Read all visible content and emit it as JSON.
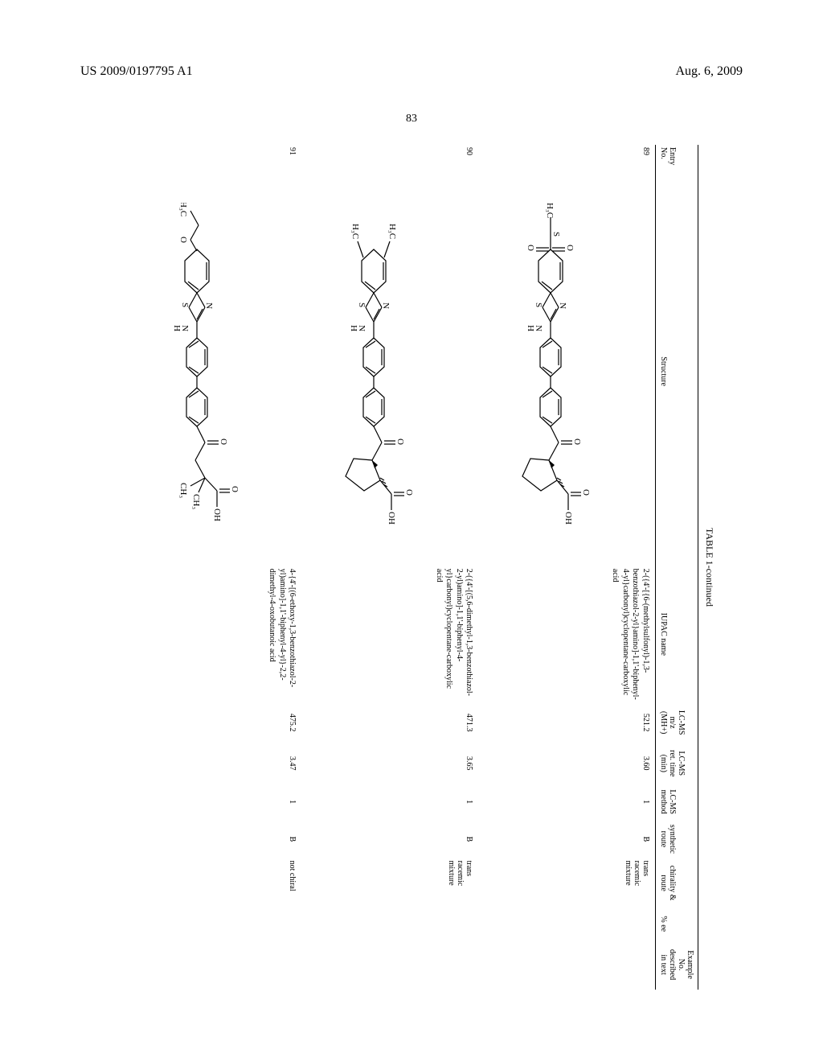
{
  "header": {
    "pub_number": "US 2009/0197795 A1",
    "pub_date": "Aug. 6, 2009"
  },
  "page_number_top": "83",
  "table": {
    "title": "TABLE 1-continued",
    "columns": {
      "entry": "Entry\nNo.",
      "structure": "Structure",
      "iupac": "IUPAC name",
      "mz": "LC-MS\nm/z\n(MH+)",
      "ret_time": "LC-MS\nret. time\n(min)",
      "method": "LC-MS\nmethod",
      "route": "synthetic\nroute",
      "chirality": "chirality &\nroute",
      "ee": "% ee",
      "example": "Example\nNo.\ndescribed\nin text"
    },
    "rows": [
      {
        "entry": "89",
        "iupac": "2-({4'-[{6-(methylsulfonyl)-1,3-benzothiazol-2-yl}amino]-1,1'-biphenyl-4-yl}carbonyl)cyclopentane-carboxylic acid",
        "mz": "521.2",
        "ret_time": "3.60",
        "method": "1",
        "route": "B",
        "chirality": "trans\nracemic\nmixture",
        "ee": "",
        "example": "",
        "structure_type": "methylsulfonyl-benzothiazole-biphenyl-cyclopentane"
      },
      {
        "entry": "90",
        "iupac": "2-({4'-[(5,6-dimethyl-1,3-benzothiazol-2-yl)amino]-1,1'-biphenyl-4-yl}carbonyl)cyclopentane-carboxylic acid",
        "mz": "471.3",
        "ret_time": "3.65",
        "method": "1",
        "route": "B",
        "chirality": "trans\nracemic\nmixture",
        "ee": "",
        "example": "",
        "structure_type": "dimethyl-benzothiazole-biphenyl-cyclopentane"
      },
      {
        "entry": "91",
        "iupac": "4-{4'-[(6-ethoxy-1,3-benzothiazol-2-yl)amino]-1,1'-biphenyl-4-yl}-2,2-dimethyl-4-oxobutanoic acid",
        "mz": "475.2",
        "ret_time": "3.47",
        "method": "1",
        "route": "B",
        "chirality": "not chiral",
        "ee": "",
        "example": "",
        "structure_type": "ethoxy-benzothiazole-biphenyl-dimethyl-oxobutanoic"
      }
    ]
  },
  "chem_labels": {
    "h3c": "H₃C",
    "ch3": "CH₃",
    "oh": "OH",
    "o": "O",
    "n": "N",
    "s": "S",
    "nh": "NH"
  },
  "styling": {
    "background_color": "#ffffff",
    "text_color": "#000000",
    "bond_color": "#000000",
    "bond_width": 1.2,
    "header_fontsize": 16,
    "pagenum_fontsize": 14,
    "table_title_fontsize": 12,
    "table_body_fontsize": 10,
    "font_family": "Times New Roman"
  }
}
